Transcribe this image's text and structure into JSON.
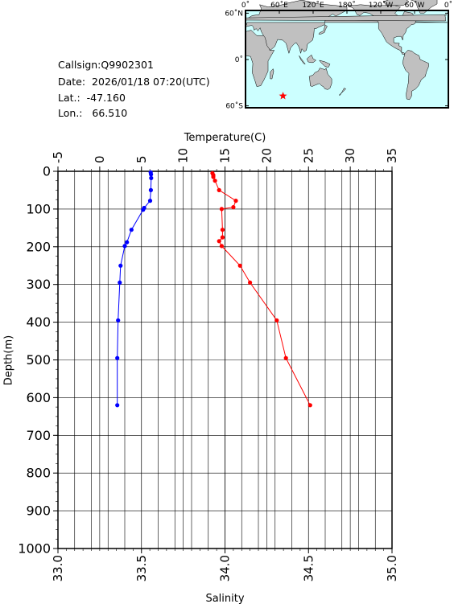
{
  "info": {
    "callsign": "Callsign:Q9902301",
    "date": "Date:  2026/01/18 07:20(UTC)",
    "lat": "Lat.:  -47.160",
    "lon": "Lon.:   66.510"
  },
  "map": {
    "lon_labels": [
      "0˚",
      "60˚E",
      "120˚E",
      "180˚",
      "120˚W",
      "60˚W",
      "0˚"
    ],
    "lat_labels": [
      "60˚N",
      "0˚",
      "60˚S"
    ],
    "station": {
      "lon": 66.51,
      "lat": -47.16
    },
    "colors": {
      "ocean": "#ccffff",
      "land": "#c0c0c0",
      "marker": "#ff0000"
    }
  },
  "chart_data": {
    "type": "line",
    "top_axis": {
      "label": "Temperature(C)",
      "range": [
        -5,
        35
      ],
      "ticks": [
        -5,
        0,
        5,
        10,
        15,
        20,
        25,
        30,
        35
      ]
    },
    "bottom_axis": {
      "label": "Salinity",
      "range": [
        33.0,
        35.0
      ],
      "ticks": [
        "33.0",
        "33.5",
        "34.0",
        "34.5",
        "35.0"
      ]
    },
    "y_axis": {
      "label": "Depth(m)",
      "range": [
        0,
        1000
      ],
      "inverted": true,
      "ticks": [
        0,
        100,
        200,
        300,
        400,
        500,
        600,
        700,
        800,
        900,
        1000
      ]
    },
    "grid": true,
    "series": [
      {
        "quantity": "temperature",
        "axis": "top",
        "color": "#ff0000",
        "points": [
          {
            "value": 13.5,
            "depth": 5
          },
          {
            "value": 13.6,
            "depth": 10
          },
          {
            "value": 13.6,
            "depth": 15
          },
          {
            "value": 13.8,
            "depth": 25
          },
          {
            "value": 14.3,
            "depth": 50
          },
          {
            "value": 16.3,
            "depth": 78
          },
          {
            "value": 16.0,
            "depth": 95
          },
          {
            "value": 14.6,
            "depth": 100
          },
          {
            "value": 14.7,
            "depth": 155
          },
          {
            "value": 14.7,
            "depth": 175
          },
          {
            "value": 14.3,
            "depth": 185
          },
          {
            "value": 14.6,
            "depth": 198
          },
          {
            "value": 16.8,
            "depth": 250
          },
          {
            "value": 18.0,
            "depth": 295
          },
          {
            "value": 21.2,
            "depth": 395
          },
          {
            "value": 22.3,
            "depth": 495
          },
          {
            "value": 25.2,
            "depth": 620
          }
        ]
      },
      {
        "quantity": "salinity",
        "axis": "bottom",
        "color": "#0000ff",
        "points": [
          {
            "value": 33.555,
            "depth": 3
          },
          {
            "value": 33.557,
            "depth": 8
          },
          {
            "value": 33.558,
            "depth": 18
          },
          {
            "value": 33.556,
            "depth": 50
          },
          {
            "value": 33.552,
            "depth": 78
          },
          {
            "value": 33.516,
            "depth": 97
          },
          {
            "value": 33.51,
            "depth": 102
          },
          {
            "value": 33.44,
            "depth": 155
          },
          {
            "value": 33.413,
            "depth": 188
          },
          {
            "value": 33.4,
            "depth": 198
          },
          {
            "value": 33.375,
            "depth": 250
          },
          {
            "value": 33.37,
            "depth": 295
          },
          {
            "value": 33.36,
            "depth": 395
          },
          {
            "value": 33.355,
            "depth": 495
          },
          {
            "value": 33.355,
            "depth": 620
          }
        ]
      }
    ]
  }
}
